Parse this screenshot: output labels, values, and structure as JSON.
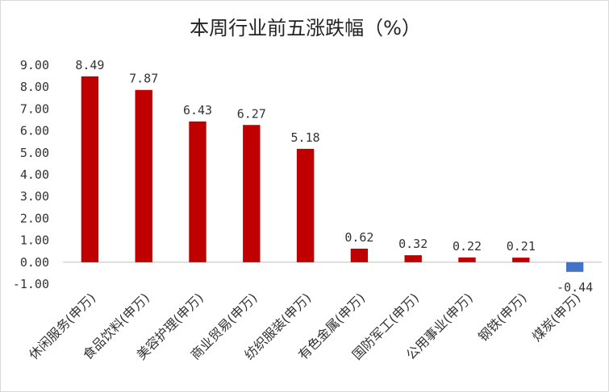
{
  "chart_data": {
    "type": "bar",
    "title": "本周行业前五涨跌幅（%）",
    "categories": [
      "休闲服务(申万)",
      "食品饮料(申万)",
      "美容护理(申万)",
      "商业贸易(申万)",
      "纺织服装(申万)",
      "有色金属(申万)",
      "国防军工(申万)",
      "公用事业(申万)",
      "钢铁(申万)",
      "煤炭(申万)"
    ],
    "series": [
      {
        "values": [
          8.49,
          7.87,
          6.43,
          6.27,
          5.18,
          0.62,
          0.32,
          0.22,
          0.21,
          -0.44
        ]
      }
    ],
    "data_labels": [
      "8.49",
      "7.87",
      "6.43",
      "6.27",
      "5.18",
      "0.62",
      "0.32",
      "0.22",
      "0.21",
      "-0.44"
    ],
    "yticks": [
      "9.00",
      "8.00",
      "7.00",
      "6.00",
      "5.00",
      "4.00",
      "3.00",
      "2.00",
      "1.00",
      "0.00",
      "-1.00"
    ],
    "ylim": [
      -1,
      9
    ],
    "grid": false,
    "legend": "none",
    "colors": {
      "positive": "#c00000",
      "negative": "#4472c4",
      "axis": "#bfbfbf"
    }
  }
}
